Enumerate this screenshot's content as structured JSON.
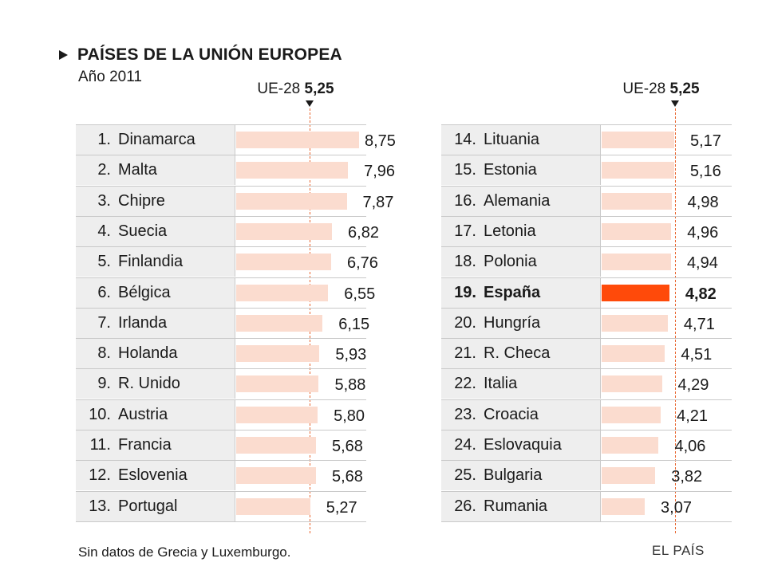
{
  "title": "PAÍSES DE LA UNIÓN EUROPEA",
  "subtitle": "Año 2011",
  "average": {
    "label": "UE-28",
    "value_label": "5,25",
    "value": 5.25
  },
  "note": "Sin datos de Grecia y Luxemburgo.",
  "source": "EL PAÍS",
  "colors": {
    "bar": "#fbdccf",
    "highlight": "#ff4a0a",
    "average_line": "#e8642c"
  },
  "chart_data": {
    "type": "bar",
    "orientation": "horizontal",
    "title": "PAÍSES DE LA UNIÓN EUROPEA",
    "subtitle": "Año 2011",
    "reference_line": {
      "label": "UE-28",
      "value": 5.25
    },
    "highlight": "España",
    "columns": [
      [
        {
          "rank": "1.",
          "country": "Dinamarca",
          "value": 8.75,
          "label": "8,75"
        },
        {
          "rank": "2.",
          "country": "Malta",
          "value": 7.96,
          "label": "7,96"
        },
        {
          "rank": "3.",
          "country": "Chipre",
          "value": 7.87,
          "label": "7,87"
        },
        {
          "rank": "4.",
          "country": "Suecia",
          "value": 6.82,
          "label": "6,82"
        },
        {
          "rank": "5.",
          "country": "Finlandia",
          "value": 6.76,
          "label": "6,76"
        },
        {
          "rank": "6.",
          "country": "Bélgica",
          "value": 6.55,
          "label": "6,55"
        },
        {
          "rank": "7.",
          "country": "Irlanda",
          "value": 6.15,
          "label": "6,15"
        },
        {
          "rank": "8.",
          "country": "Holanda",
          "value": 5.93,
          "label": "5,93"
        },
        {
          "rank": "9.",
          "country": "R. Unido",
          "value": 5.88,
          "label": "5,88"
        },
        {
          "rank": "10.",
          "country": "Austria",
          "value": 5.8,
          "label": "5,80"
        },
        {
          "rank": "11.",
          "country": "Francia",
          "value": 5.68,
          "label": "5,68"
        },
        {
          "rank": "12.",
          "country": "Eslovenia",
          "value": 5.68,
          "label": "5,68"
        },
        {
          "rank": "13.",
          "country": "Portugal",
          "value": 5.27,
          "label": "5,27"
        }
      ],
      [
        {
          "rank": "14.",
          "country": "Lituania",
          "value": 5.17,
          "label": "5,17"
        },
        {
          "rank": "15.",
          "country": "Estonia",
          "value": 5.16,
          "label": "5,16"
        },
        {
          "rank": "16.",
          "country": "Alemania",
          "value": 4.98,
          "label": "4,98"
        },
        {
          "rank": "17.",
          "country": "Letonia",
          "value": 4.96,
          "label": "4,96"
        },
        {
          "rank": "18.",
          "country": "Polonia",
          "value": 4.94,
          "label": "4,94"
        },
        {
          "rank": "19.",
          "country": "España",
          "value": 4.82,
          "label": "4,82",
          "highlight": true
        },
        {
          "rank": "20.",
          "country": "Hungría",
          "value": 4.71,
          "label": "4,71"
        },
        {
          "rank": "21.",
          "country": "R. Checa",
          "value": 4.51,
          "label": "4,51"
        },
        {
          "rank": "22.",
          "country": "Italia",
          "value": 4.29,
          "label": "4,29"
        },
        {
          "rank": "23.",
          "country": "Croacia",
          "value": 4.21,
          "label": "4,21"
        },
        {
          "rank": "24.",
          "country": "Eslovaquia",
          "value": 4.06,
          "label": "4,06"
        },
        {
          "rank": "25.",
          "country": "Bulgaria",
          "value": 3.82,
          "label": "3,82"
        },
        {
          "rank": "26.",
          "country": "Rumania",
          "value": 3.07,
          "label": "3,07"
        }
      ]
    ]
  }
}
